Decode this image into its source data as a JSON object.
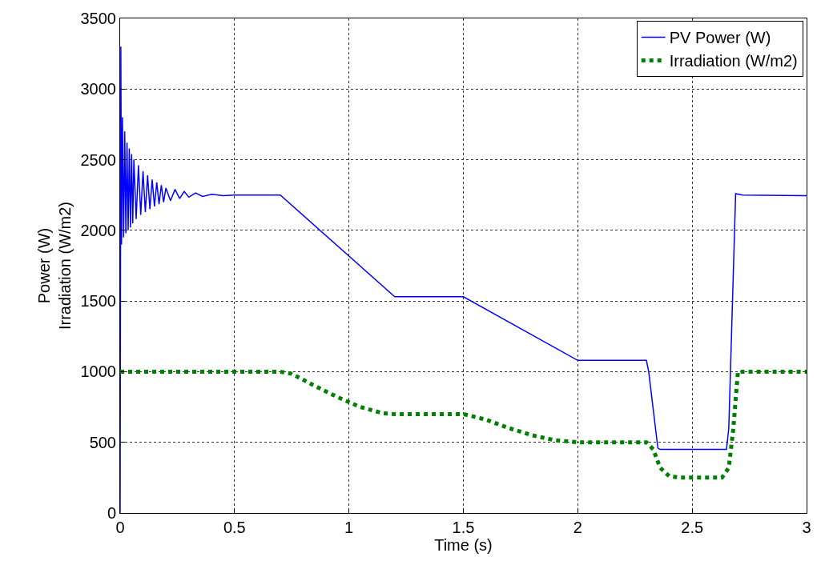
{
  "chart_data": {
    "type": "line",
    "xlabel": "Time (s)",
    "ylabel": "Power (W)\nIrradiation (W/m2)",
    "xlim": [
      0,
      3
    ],
    "xticks": [
      0,
      0.5,
      1,
      1.5,
      2,
      2.5,
      3
    ],
    "ylim": [
      0,
      3500
    ],
    "yticks": [
      0,
      500,
      1000,
      1500,
      2000,
      2500,
      3000,
      3500
    ],
    "grid": true,
    "legend": "top right",
    "series": [
      {
        "name": "PV Power (W)",
        "color": "#0000ff",
        "line_style": "solid",
        "x": [
          0,
          0.003,
          0.006,
          0.01,
          0.015,
          0.02,
          0.025,
          0.03,
          0.035,
          0.04,
          0.045,
          0.05,
          0.055,
          0.06,
          0.07,
          0.08,
          0.09,
          0.1,
          0.11,
          0.12,
          0.13,
          0.14,
          0.15,
          0.16,
          0.17,
          0.18,
          0.19,
          0.2,
          0.22,
          0.24,
          0.26,
          0.28,
          0.3,
          0.33,
          0.36,
          0.4,
          0.45,
          0.5,
          0.7,
          1.2,
          1.5,
          2.0,
          2.3,
          2.31,
          2.35,
          2.36,
          2.65,
          2.66,
          2.69,
          2.72,
          3.0
        ],
        "values": [
          0,
          3300,
          1900,
          2800,
          1950,
          2700,
          1980,
          2620,
          2000,
          2580,
          2020,
          2540,
          2050,
          2500,
          2080,
          2460,
          2110,
          2420,
          2130,
          2390,
          2150,
          2360,
          2170,
          2340,
          2185,
          2320,
          2200,
          2300,
          2210,
          2290,
          2225,
          2275,
          2235,
          2265,
          2240,
          2255,
          2245,
          2250,
          2250,
          1530,
          1530,
          1080,
          1080,
          1000,
          460,
          450,
          450,
          600,
          2260,
          2250,
          2245
        ]
      },
      {
        "name": "Irradiation (W/m2)",
        "color": "#008000",
        "line_style": "dotted",
        "x": [
          0,
          0.7,
          0.75,
          0.85,
          0.95,
          1.05,
          1.15,
          1.2,
          1.5,
          1.6,
          1.7,
          1.8,
          1.9,
          2.0,
          2.3,
          2.33,
          2.36,
          2.4,
          2.45,
          2.63,
          2.66,
          2.68,
          2.7,
          3.0
        ],
        "values": [
          1000,
          1000,
          985,
          900,
          820,
          750,
          705,
          700,
          700,
          660,
          600,
          550,
          515,
          500,
          500,
          450,
          320,
          260,
          250,
          250,
          320,
          600,
          1000,
          1000
        ]
      }
    ]
  }
}
